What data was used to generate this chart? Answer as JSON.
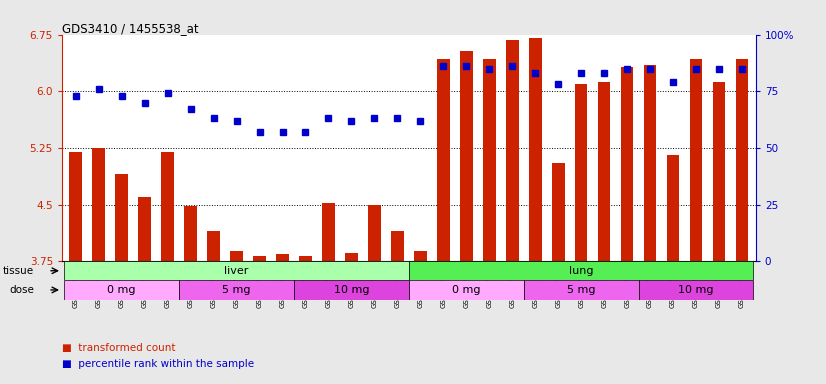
{
  "title": "GDS3410 / 1455538_at",
  "samples": [
    "GSM326944",
    "GSM326946",
    "GSM326948",
    "GSM326950",
    "GSM326952",
    "GSM326954",
    "GSM326956",
    "GSM326958",
    "GSM326960",
    "GSM326962",
    "GSM326964",
    "GSM326966",
    "GSM326968",
    "GSM326970",
    "GSM326972",
    "GSM326943",
    "GSM326945",
    "GSM326947",
    "GSM326949",
    "GSM326951",
    "GSM326953",
    "GSM326955",
    "GSM326957",
    "GSM326959",
    "GSM326961",
    "GSM326963",
    "GSM326965",
    "GSM326967",
    "GSM326969",
    "GSM326971"
  ],
  "bar_values": [
    5.19,
    5.25,
    4.9,
    4.6,
    5.2,
    4.48,
    4.15,
    3.88,
    3.82,
    3.84,
    3.82,
    4.52,
    3.86,
    4.5,
    4.15,
    3.88,
    6.42,
    6.53,
    6.42,
    6.68,
    6.7,
    5.05,
    6.1,
    6.12,
    6.32,
    6.35,
    5.15,
    6.42,
    6.12,
    6.42
  ],
  "dot_percentiles": [
    73,
    76,
    73,
    70,
    74,
    67,
    63,
    62,
    57,
    57,
    57,
    63,
    62,
    63,
    63,
    62,
    86,
    86,
    85,
    86,
    83,
    78,
    83,
    83,
    85,
    85,
    79,
    85,
    85,
    85
  ],
  "ylim_left": [
    3.75,
    6.75
  ],
  "ylim_right": [
    0,
    100
  ],
  "yticks_left": [
    3.75,
    4.5,
    5.25,
    6.0,
    6.75
  ],
  "yticks_right": [
    0,
    25,
    50,
    75,
    100
  ],
  "hlines": [
    6.0,
    5.25,
    4.5
  ],
  "bar_color": "#cc2200",
  "dot_color": "#0000cc",
  "tissue_groups": [
    {
      "label": "liver",
      "start": 0,
      "end": 15,
      "color": "#aaffaa"
    },
    {
      "label": "lung",
      "start": 15,
      "end": 30,
      "color": "#55ee55"
    }
  ],
  "dose_groups": [
    {
      "label": "0 mg",
      "start": 0,
      "end": 5,
      "color": "#ffaaff"
    },
    {
      "label": "5 mg",
      "start": 5,
      "end": 10,
      "color": "#ee66ee"
    },
    {
      "label": "10 mg",
      "start": 10,
      "end": 15,
      "color": "#dd44dd"
    },
    {
      "label": "0 mg",
      "start": 15,
      "end": 20,
      "color": "#ffaaff"
    },
    {
      "label": "5 mg",
      "start": 20,
      "end": 25,
      "color": "#ee66ee"
    },
    {
      "label": "10 mg",
      "start": 25,
      "end": 30,
      "color": "#dd44dd"
    }
  ],
  "tissue_label": "tissue",
  "dose_label": "dose",
  "legend_items": [
    {
      "label": "transformed count",
      "color": "#cc2200"
    },
    {
      "label": "percentile rank within the sample",
      "color": "#0000cc"
    }
  ],
  "background_color": "#e8e8e8",
  "plot_bg": "#ffffff",
  "xticklabel_bg": "#d8d8d8"
}
